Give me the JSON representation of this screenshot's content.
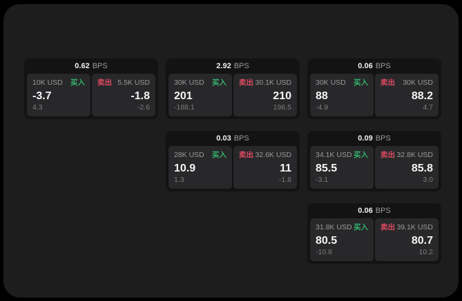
{
  "colors": {
    "background": "#000000",
    "surface": "#1d1d1e",
    "card": "#131314",
    "tile": "#28282a",
    "buy_green": "#34b36e",
    "sell_red": "#de4a63",
    "text_primary": "#f5f5f5",
    "text_secondary": "#9b9b9b",
    "text_dim": "#7d7d7d"
  },
  "cards": [
    {
      "bps": "0.62",
      "bps_unit": "BPS",
      "buy": {
        "amount": "10K USD",
        "label": "买入",
        "price": "-3.7",
        "delta": "4.3"
      },
      "sell": {
        "label": "卖出",
        "amount": "5.5K USD",
        "price": "-1.8",
        "delta": "-2.6"
      }
    },
    {
      "bps": "2.92",
      "bps_unit": "BPS",
      "buy": {
        "amount": "30K USD",
        "label": "买入",
        "price": "201",
        "delta": "-188.1"
      },
      "sell": {
        "label": "卖出",
        "amount": "30.1K USD",
        "price": "210",
        "delta": "196.5"
      }
    },
    {
      "bps": "0.06",
      "bps_unit": "BPS",
      "buy": {
        "amount": "30K USD",
        "label": "买入",
        "price": "88",
        "delta": "-4.9"
      },
      "sell": {
        "label": "卖出",
        "amount": "30K USD",
        "price": "88.2",
        "delta": "4.7"
      }
    },
    {
      "bps": "0.03",
      "bps_unit": "BPS",
      "buy": {
        "amount": "28K USD",
        "label": "买入",
        "price": "10.9",
        "delta": "1.3"
      },
      "sell": {
        "label": "卖出",
        "amount": "32.6K USD",
        "price": "11",
        "delta": "-1.8"
      }
    },
    {
      "bps": "0.09",
      "bps_unit": "BPS",
      "buy": {
        "amount": "34.1K USD",
        "label": "买入",
        "price": "85.5",
        "delta": "-3.1"
      },
      "sell": {
        "label": "卖出",
        "amount": "32.8K USD",
        "price": "85.8",
        "delta": "3.0"
      }
    },
    {
      "bps": "0.06",
      "bps_unit": "BPS",
      "buy": {
        "amount": "31.8K USD",
        "label": "买入",
        "price": "80.5",
        "delta": "-10.8"
      },
      "sell": {
        "label": "卖出",
        "amount": "39.1K USD",
        "price": "80.7",
        "delta": "10.2"
      }
    }
  ]
}
